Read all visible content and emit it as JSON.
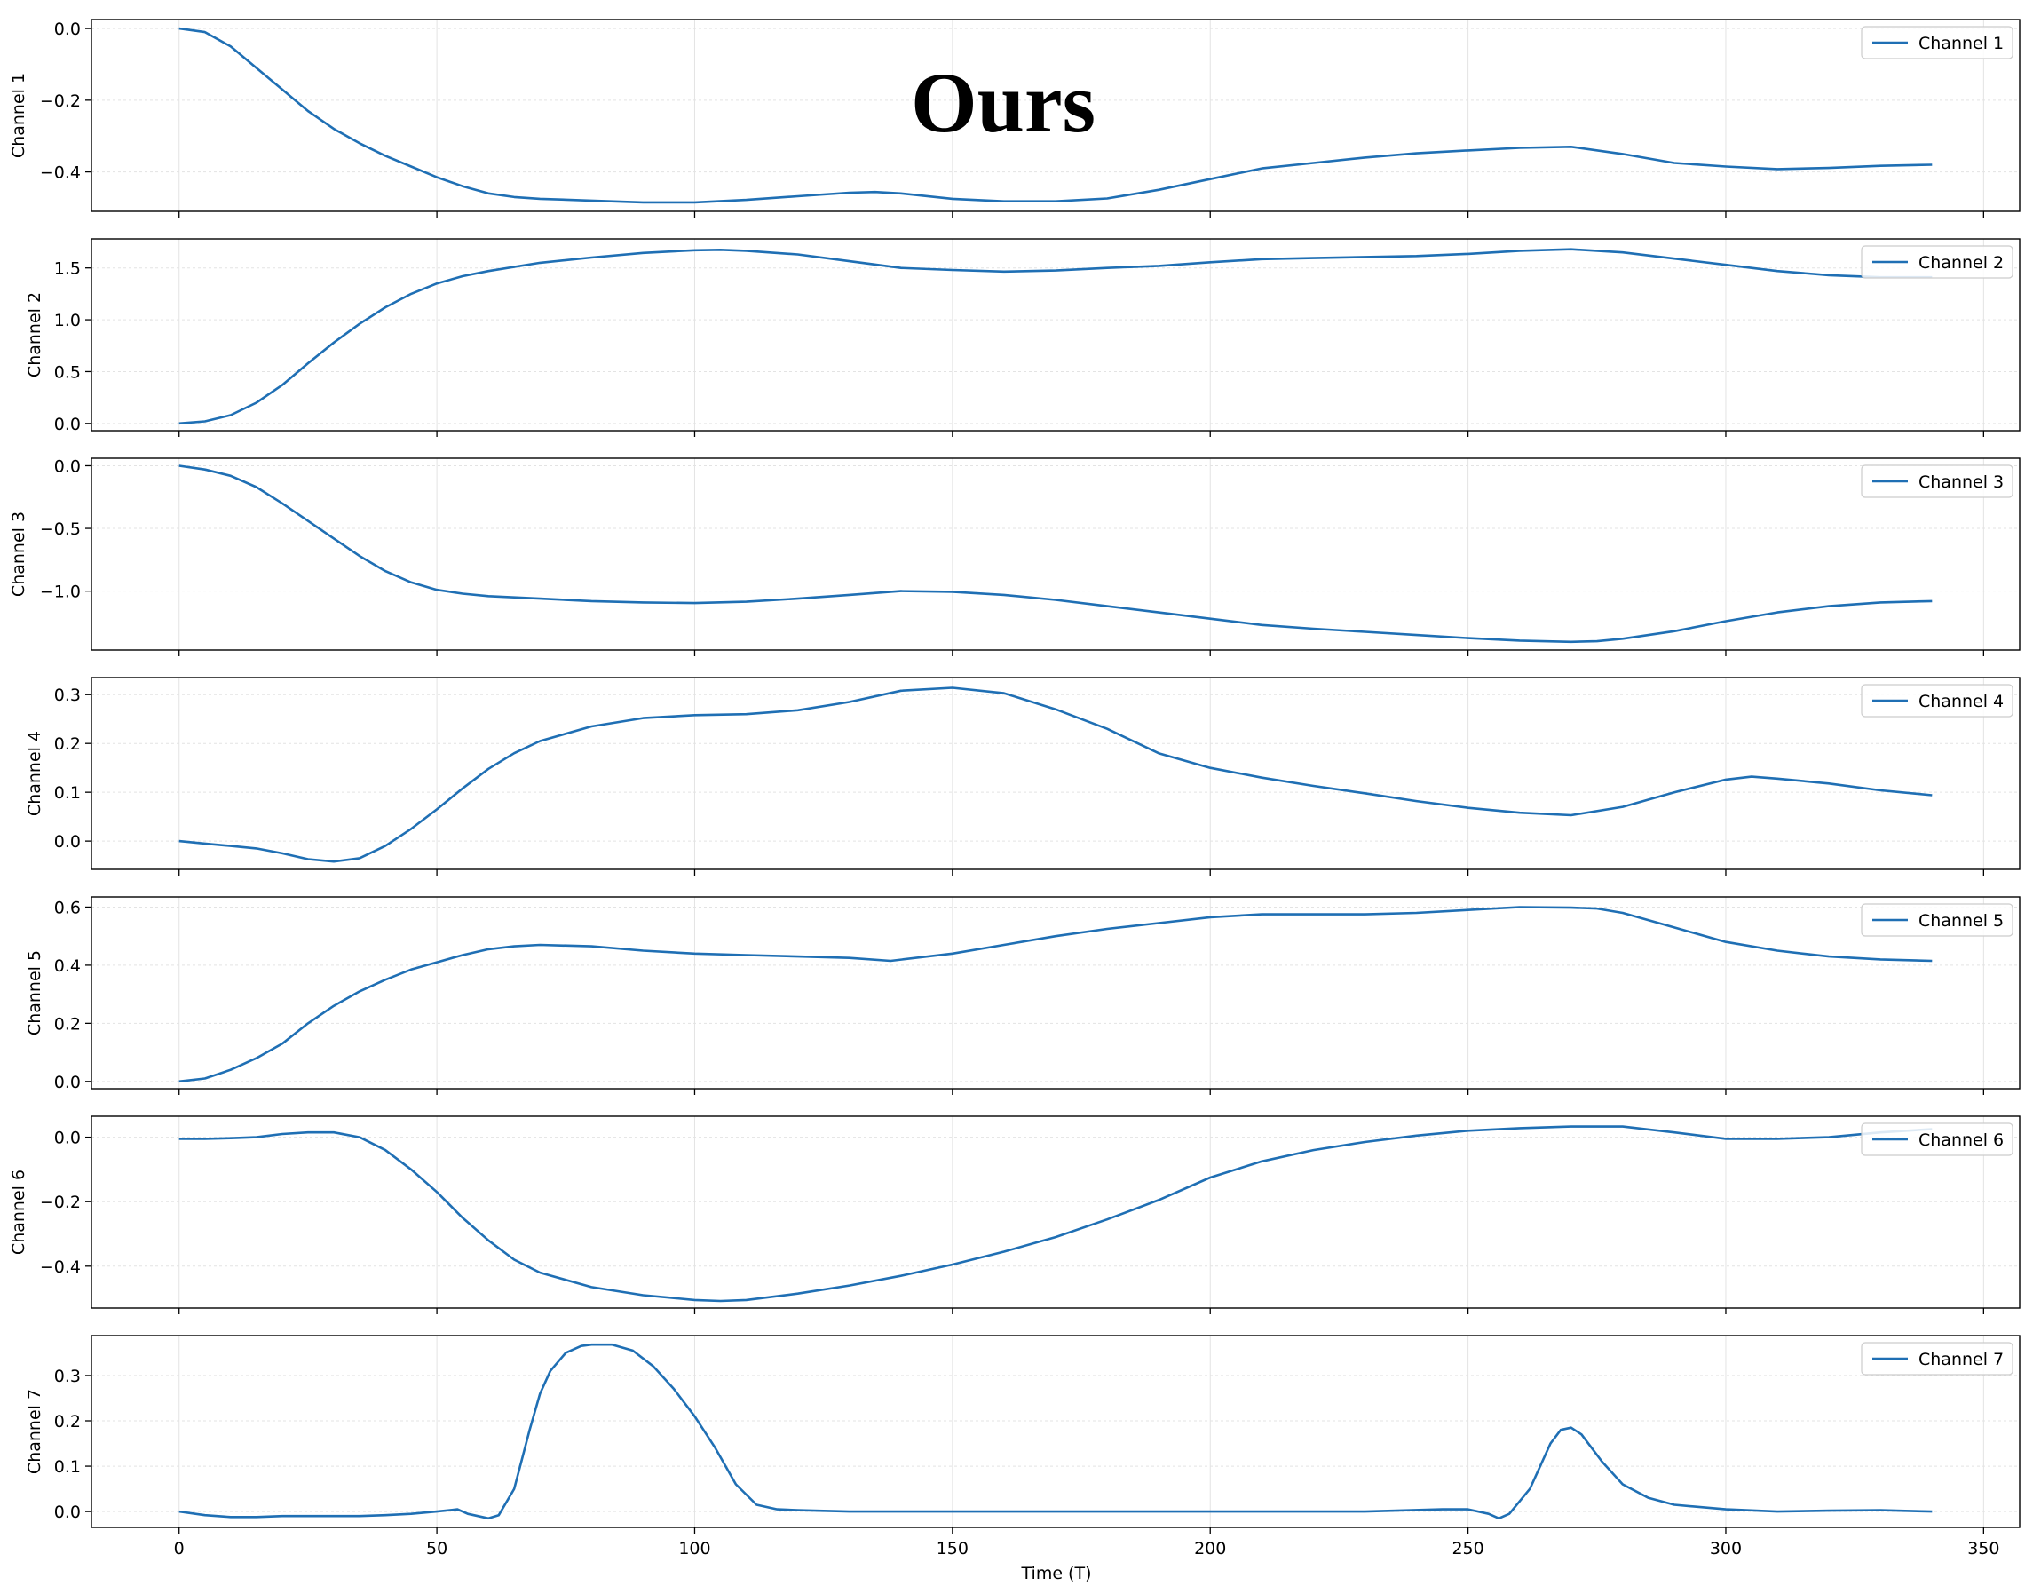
{
  "overlay_title": "Ours",
  "line_color": "#1f6fb4",
  "chart_data": {
    "type": "line",
    "xlabel": "Time (T)",
    "xlim": [
      -17,
      357
    ],
    "x_ticks": [
      0,
      50,
      100,
      150,
      200,
      250,
      300,
      350
    ],
    "grid": true,
    "legend_placement": "top-right",
    "panels": [
      {
        "ylabel": "Channel 1",
        "legend": "Channel 1",
        "ylim": [
          -0.51,
          0.025
        ],
        "y_ticks": [
          0.0,
          -0.2,
          -0.4
        ],
        "y_tick_labels": [
          "0.0",
          "−0.2",
          "−0.4"
        ],
        "x": [
          0,
          5,
          10,
          15,
          20,
          25,
          30,
          35,
          40,
          45,
          50,
          55,
          60,
          65,
          70,
          80,
          90,
          100,
          110,
          120,
          130,
          135,
          140,
          150,
          160,
          170,
          180,
          190,
          200,
          210,
          220,
          230,
          240,
          250,
          260,
          270,
          280,
          290,
          300,
          310,
          320,
          330,
          340
        ],
        "y": [
          0.0,
          -0.01,
          -0.05,
          -0.11,
          -0.17,
          -0.23,
          -0.28,
          -0.32,
          -0.355,
          -0.385,
          -0.415,
          -0.44,
          -0.46,
          -0.47,
          -0.475,
          -0.48,
          -0.485,
          -0.485,
          -0.478,
          -0.468,
          -0.458,
          -0.456,
          -0.46,
          -0.475,
          -0.482,
          -0.482,
          -0.474,
          -0.45,
          -0.42,
          -0.39,
          -0.375,
          -0.36,
          -0.348,
          -0.34,
          -0.333,
          -0.33,
          -0.35,
          -0.375,
          -0.385,
          -0.392,
          -0.389,
          -0.383,
          -0.38
        ]
      },
      {
        "ylabel": "Channel 2",
        "legend": "Channel 2",
        "ylim": [
          -0.07,
          1.78
        ],
        "y_ticks": [
          0.0,
          0.5,
          1.0,
          1.5
        ],
        "y_tick_labels": [
          "0.0",
          "0.5",
          "1.0",
          "1.5"
        ],
        "x": [
          0,
          5,
          10,
          15,
          20,
          25,
          30,
          35,
          40,
          45,
          50,
          55,
          60,
          70,
          80,
          90,
          100,
          105,
          110,
          120,
          130,
          140,
          150,
          160,
          170,
          180,
          190,
          200,
          210,
          220,
          230,
          240,
          250,
          260,
          270,
          280,
          290,
          300,
          310,
          320,
          330,
          340
        ],
        "y": [
          0.0,
          0.02,
          0.08,
          0.2,
          0.37,
          0.58,
          0.78,
          0.96,
          1.12,
          1.25,
          1.35,
          1.42,
          1.47,
          1.55,
          1.6,
          1.645,
          1.67,
          1.675,
          1.665,
          1.63,
          1.565,
          1.5,
          1.48,
          1.465,
          1.475,
          1.5,
          1.52,
          1.555,
          1.585,
          1.595,
          1.605,
          1.615,
          1.635,
          1.665,
          1.68,
          1.65,
          1.59,
          1.53,
          1.47,
          1.43,
          1.41,
          1.41
        ]
      },
      {
        "ylabel": "Channel 3",
        "legend": "Channel 3",
        "ylim": [
          -1.47,
          0.06
        ],
        "y_ticks": [
          0.0,
          -0.5,
          -1.0
        ],
        "y_tick_labels": [
          "0.0",
          "−0.5",
          "−1.0"
        ],
        "x": [
          0,
          5,
          10,
          15,
          20,
          25,
          30,
          35,
          40,
          45,
          50,
          55,
          60,
          70,
          80,
          90,
          100,
          110,
          120,
          130,
          140,
          150,
          160,
          170,
          180,
          190,
          200,
          210,
          220,
          230,
          240,
          250,
          260,
          270,
          275,
          280,
          290,
          300,
          310,
          320,
          330,
          340
        ],
        "y": [
          0.0,
          -0.03,
          -0.08,
          -0.17,
          -0.3,
          -0.44,
          -0.58,
          -0.72,
          -0.84,
          -0.93,
          -0.99,
          -1.02,
          -1.04,
          -1.06,
          -1.08,
          -1.09,
          -1.095,
          -1.085,
          -1.06,
          -1.03,
          -1.0,
          -1.005,
          -1.03,
          -1.07,
          -1.12,
          -1.17,
          -1.22,
          -1.27,
          -1.3,
          -1.325,
          -1.35,
          -1.375,
          -1.395,
          -1.405,
          -1.4,
          -1.38,
          -1.32,
          -1.24,
          -1.17,
          -1.12,
          -1.09,
          -1.08
        ]
      },
      {
        "ylabel": "Channel 4",
        "legend": "Channel 4",
        "ylim": [
          -0.058,
          0.335
        ],
        "y_ticks": [
          0.0,
          0.1,
          0.2,
          0.3
        ],
        "y_tick_labels": [
          "0.0",
          "0.1",
          "0.2",
          "0.3"
        ],
        "x": [
          0,
          5,
          10,
          15,
          20,
          25,
          30,
          35,
          40,
          45,
          50,
          55,
          60,
          65,
          70,
          80,
          90,
          100,
          110,
          120,
          130,
          140,
          150,
          160,
          170,
          180,
          190,
          200,
          210,
          220,
          230,
          240,
          250,
          260,
          270,
          280,
          290,
          300,
          305,
          310,
          320,
          330,
          340
        ],
        "y": [
          0.0,
          -0.005,
          -0.01,
          -0.015,
          -0.025,
          -0.037,
          -0.042,
          -0.035,
          -0.01,
          0.025,
          0.065,
          0.108,
          0.148,
          0.18,
          0.205,
          0.235,
          0.252,
          0.258,
          0.26,
          0.268,
          0.285,
          0.308,
          0.314,
          0.303,
          0.27,
          0.23,
          0.18,
          0.15,
          0.13,
          0.113,
          0.098,
          0.082,
          0.068,
          0.058,
          0.053,
          0.07,
          0.1,
          0.126,
          0.132,
          0.128,
          0.118,
          0.104,
          0.094
        ]
      },
      {
        "ylabel": "Channel 5",
        "legend": "Channel 5",
        "ylim": [
          -0.025,
          0.635
        ],
        "y_ticks": [
          0.0,
          0.2,
          0.4,
          0.6
        ],
        "y_tick_labels": [
          "0.0",
          "0.2",
          "0.4",
          "0.6"
        ],
        "x": [
          0,
          5,
          10,
          15,
          20,
          25,
          30,
          35,
          40,
          45,
          50,
          55,
          60,
          65,
          70,
          80,
          90,
          100,
          110,
          120,
          130,
          138,
          150,
          160,
          170,
          180,
          190,
          200,
          210,
          220,
          230,
          240,
          250,
          260,
          270,
          275,
          280,
          290,
          300,
          310,
          320,
          330,
          340
        ],
        "y": [
          0.0,
          0.01,
          0.04,
          0.08,
          0.13,
          0.2,
          0.26,
          0.31,
          0.35,
          0.385,
          0.41,
          0.435,
          0.455,
          0.465,
          0.47,
          0.465,
          0.45,
          0.44,
          0.435,
          0.43,
          0.425,
          0.415,
          0.44,
          0.47,
          0.5,
          0.525,
          0.545,
          0.565,
          0.575,
          0.575,
          0.575,
          0.58,
          0.59,
          0.6,
          0.598,
          0.595,
          0.58,
          0.53,
          0.48,
          0.45,
          0.43,
          0.42,
          0.415
        ]
      },
      {
        "ylabel": "Channel 6",
        "legend": "Channel 6",
        "ylim": [
          -0.53,
          0.065
        ],
        "y_ticks": [
          0.0,
          -0.2,
          -0.4
        ],
        "y_tick_labels": [
          "0.0",
          "−0.2",
          "−0.4"
        ],
        "x": [
          0,
          5,
          10,
          15,
          20,
          25,
          30,
          35,
          40,
          45,
          50,
          55,
          60,
          65,
          70,
          80,
          90,
          100,
          105,
          110,
          120,
          130,
          140,
          150,
          160,
          170,
          180,
          190,
          200,
          210,
          220,
          230,
          240,
          250,
          260,
          270,
          280,
          290,
          300,
          310,
          320,
          330,
          340
        ],
        "y": [
          -0.005,
          -0.005,
          -0.003,
          0.0,
          0.01,
          0.015,
          0.015,
          0.0,
          -0.04,
          -0.1,
          -0.17,
          -0.25,
          -0.32,
          -0.38,
          -0.42,
          -0.465,
          -0.49,
          -0.505,
          -0.508,
          -0.505,
          -0.485,
          -0.46,
          -0.43,
          -0.395,
          -0.355,
          -0.31,
          -0.255,
          -0.195,
          -0.125,
          -0.075,
          -0.04,
          -0.015,
          0.005,
          0.02,
          0.028,
          0.033,
          0.033,
          0.015,
          -0.005,
          -0.005,
          0.0,
          0.015,
          0.025
        ]
      },
      {
        "ylabel": "Channel 7",
        "legend": "Channel 7",
        "ylim": [
          -0.035,
          0.388
        ],
        "y_ticks": [
          0.0,
          0.1,
          0.2,
          0.3
        ],
        "y_tick_labels": [
          "0.0",
          "0.1",
          "0.2",
          "0.3"
        ],
        "x": [
          0,
          5,
          10,
          15,
          20,
          25,
          30,
          35,
          40,
          45,
          50,
          54,
          56,
          60,
          62,
          65,
          68,
          70,
          72,
          75,
          78,
          80,
          84,
          88,
          92,
          96,
          100,
          104,
          108,
          112,
          116,
          120,
          130,
          150,
          170,
          190,
          210,
          230,
          245,
          250,
          254,
          256,
          258,
          262,
          266,
          268,
          270,
          272,
          276,
          280,
          285,
          290,
          300,
          310,
          320,
          330,
          340
        ],
        "y": [
          0.0,
          -0.008,
          -0.012,
          -0.012,
          -0.01,
          -0.01,
          -0.01,
          -0.01,
          -0.008,
          -0.005,
          0.0,
          0.005,
          -0.005,
          -0.015,
          -0.008,
          0.05,
          0.18,
          0.26,
          0.31,
          0.35,
          0.365,
          0.368,
          0.368,
          0.355,
          0.32,
          0.27,
          0.21,
          0.14,
          0.06,
          0.015,
          0.005,
          0.003,
          0.0,
          0.0,
          0.0,
          0.0,
          0.0,
          0.0,
          0.005,
          0.005,
          -0.005,
          -0.015,
          -0.005,
          0.05,
          0.15,
          0.18,
          0.185,
          0.17,
          0.11,
          0.06,
          0.03,
          0.015,
          0.005,
          0.0,
          0.002,
          0.003,
          0.0
        ]
      }
    ]
  }
}
